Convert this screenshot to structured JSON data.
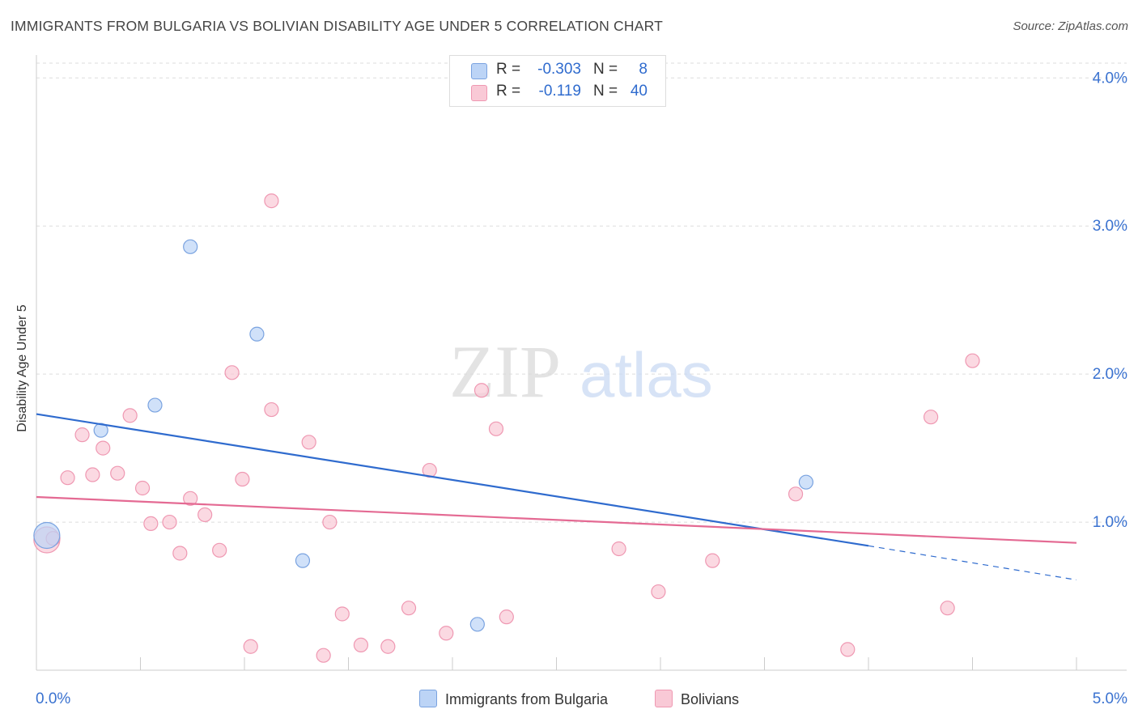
{
  "title": "IMMIGRANTS FROM BULGARIA VS BOLIVIAN DISABILITY AGE UNDER 5 CORRELATION CHART",
  "source": "Source: ZipAtlas.com",
  "watermark": {
    "zip": "ZIP",
    "atlas": "atlas"
  },
  "stats": {
    "r_label": "R =",
    "n_label": "N =",
    "rows": [
      {
        "r": "-0.303",
        "n": "8",
        "fill": "#bcd4f6",
        "stroke": "#7aa3e0"
      },
      {
        "r": "-0.119",
        "n": "40",
        "fill": "#f9c9d6",
        "stroke": "#ef98b2"
      }
    ]
  },
  "legend": {
    "items": [
      {
        "label": "Immigrants from Bulgaria",
        "fill": "#bcd4f6",
        "stroke": "#7aa3e0"
      },
      {
        "label": "Bolivians",
        "fill": "#f9c9d6",
        "stroke": "#ef98b2"
      }
    ]
  },
  "chart_data": {
    "type": "scatter",
    "title": "IMMIGRANTS FROM BULGARIA VS BOLIVIAN DISABILITY AGE UNDER 5 CORRELATION CHART",
    "xlabel": "",
    "ylabel": "Disability Age Under 5",
    "xlim": [
      0,
      5
    ],
    "ylim": [
      0,
      4.1
    ],
    "x_ticks": [
      "0.0%",
      "5.0%"
    ],
    "y_ticks": [
      {
        "value": 1.0,
        "label": "1.0%"
      },
      {
        "value": 2.0,
        "label": "2.0%"
      },
      {
        "value": 3.0,
        "label": "3.0%"
      },
      {
        "value": 4.0,
        "label": "4.0%"
      }
    ],
    "grid": true,
    "legend": "bottom",
    "series": [
      {
        "name": "Immigrants from Bulgaria",
        "color": "#2f6bce",
        "fill": "#bcd4f6",
        "stroke": "#7aa3e0",
        "points": [
          {
            "x": 0.05,
            "y": 0.91,
            "size": "large"
          },
          {
            "x": 0.31,
            "y": 1.62
          },
          {
            "x": 0.57,
            "y": 1.79
          },
          {
            "x": 0.74,
            "y": 2.86
          },
          {
            "x": 1.06,
            "y": 2.27
          },
          {
            "x": 1.28,
            "y": 0.74
          },
          {
            "x": 2.12,
            "y": 0.31
          },
          {
            "x": 3.7,
            "y": 1.27
          }
        ],
        "trend": {
          "x0": 0.0,
          "y0": 1.73,
          "x1": 4.0,
          "y1": 0.84,
          "dash_to_x": 5.0,
          "dash_to_y": 0.61
        }
      },
      {
        "name": "Bolivians",
        "color": "#e46a93",
        "fill": "#f9c9d6",
        "stroke": "#ef98b2",
        "points": [
          {
            "x": 0.05,
            "y": 0.88,
            "size": "large"
          },
          {
            "x": 0.08,
            "y": 0.89
          },
          {
            "x": 0.15,
            "y": 1.3
          },
          {
            "x": 0.22,
            "y": 1.59
          },
          {
            "x": 0.27,
            "y": 1.32
          },
          {
            "x": 0.32,
            "y": 1.5
          },
          {
            "x": 0.39,
            "y": 1.33
          },
          {
            "x": 0.45,
            "y": 1.72
          },
          {
            "x": 0.51,
            "y": 1.23
          },
          {
            "x": 0.55,
            "y": 0.99
          },
          {
            "x": 0.64,
            "y": 1.0
          },
          {
            "x": 0.69,
            "y": 0.79
          },
          {
            "x": 0.74,
            "y": 1.16
          },
          {
            "x": 0.81,
            "y": 1.05
          },
          {
            "x": 0.88,
            "y": 0.81
          },
          {
            "x": 0.94,
            "y": 2.01
          },
          {
            "x": 0.99,
            "y": 1.29
          },
          {
            "x": 1.03,
            "y": 0.16
          },
          {
            "x": 1.13,
            "y": 1.76
          },
          {
            "x": 1.13,
            "y": 3.17
          },
          {
            "x": 1.31,
            "y": 1.54
          },
          {
            "x": 1.38,
            "y": 0.1
          },
          {
            "x": 1.47,
            "y": 0.38
          },
          {
            "x": 1.41,
            "y": 1.0
          },
          {
            "x": 1.56,
            "y": 0.17
          },
          {
            "x": 1.69,
            "y": 0.16
          },
          {
            "x": 1.79,
            "y": 0.42
          },
          {
            "x": 1.89,
            "y": 1.35
          },
          {
            "x": 1.97,
            "y": 0.25
          },
          {
            "x": 2.14,
            "y": 1.89
          },
          {
            "x": 2.21,
            "y": 1.63
          },
          {
            "x": 2.26,
            "y": 0.36
          },
          {
            "x": 2.8,
            "y": 0.82
          },
          {
            "x": 2.99,
            "y": 0.53
          },
          {
            "x": 3.25,
            "y": 0.74
          },
          {
            "x": 3.65,
            "y": 1.19
          },
          {
            "x": 3.9,
            "y": 0.14
          },
          {
            "x": 4.3,
            "y": 1.71
          },
          {
            "x": 4.38,
            "y": 0.42
          },
          {
            "x": 4.5,
            "y": 2.09
          }
        ],
        "trend": {
          "x0": 0.0,
          "y0": 1.17,
          "x1": 5.0,
          "y1": 0.86
        }
      }
    ]
  }
}
